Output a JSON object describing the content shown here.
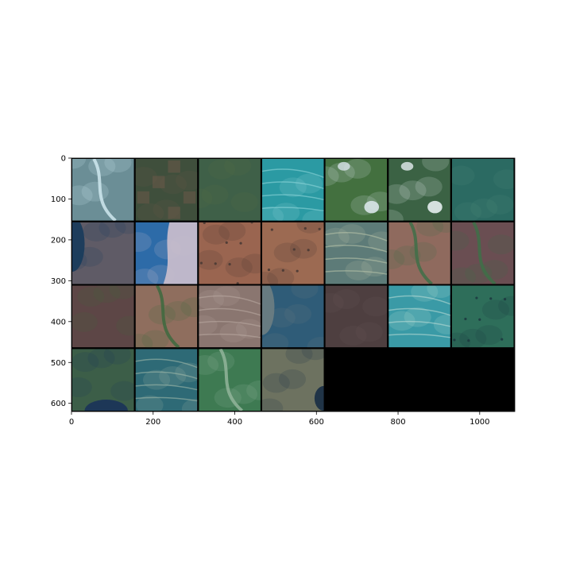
{
  "figure": {
    "background": "#ffffff",
    "empty_fill": "#000000",
    "grid": {
      "rows": 4,
      "cols": 7,
      "tile_count": 25
    },
    "x_axis": {
      "min": 0,
      "max": 1086,
      "ticks": [
        "0",
        "200",
        "400",
        "600",
        "800",
        "1000"
      ],
      "tick_values": [
        0,
        200,
        400,
        600,
        800,
        1000
      ]
    },
    "y_axis": {
      "min": 0,
      "max": 620,
      "ticks": [
        "0",
        "100",
        "200",
        "300",
        "400",
        "500",
        "600"
      ],
      "tick_values": [
        0,
        100,
        200,
        300,
        400,
        500,
        600
      ]
    },
    "tiles": [
      {
        "name": "tile-1",
        "base": "#6b8e96",
        "accent": "#cfe8ee",
        "feature": "river"
      },
      {
        "name": "tile-2",
        "base": "#3f4f3c",
        "accent": "#6b5a48",
        "feature": "fields"
      },
      {
        "name": "tile-3",
        "base": "#3f6048",
        "accent": "#566f45",
        "feature": "plain"
      },
      {
        "name": "tile-4",
        "base": "#2b9aa3",
        "accent": "#8ed5d8",
        "feature": "veins"
      },
      {
        "name": "tile-5",
        "base": "#43703f",
        "accent": "#d8e4e8",
        "feature": "clouds"
      },
      {
        "name": "tile-6",
        "base": "#3b6244",
        "accent": "#e5eef0",
        "feature": "clouds"
      },
      {
        "name": "tile-7",
        "base": "#2b6a62",
        "accent": "#4f8a7a",
        "feature": "plain"
      },
      {
        "name": "tile-8",
        "base": "#5f5b66",
        "accent": "#1a3c5c",
        "feature": "lake-left"
      },
      {
        "name": "tile-9",
        "base": "#2d6ba8",
        "accent": "#c6bccb",
        "feature": "coast"
      },
      {
        "name": "tile-10",
        "base": "#9a6550",
        "accent": "#4a3a34",
        "feature": "dots"
      },
      {
        "name": "tile-11",
        "base": "#9c6a52",
        "accent": "#4a3a34",
        "feature": "dots"
      },
      {
        "name": "tile-12",
        "base": "#5d7b78",
        "accent": "#b7c3a8",
        "feature": "veins"
      },
      {
        "name": "tile-13",
        "base": "#8f6a5e",
        "accent": "#3f6e48",
        "feature": "river"
      },
      {
        "name": "tile-14",
        "base": "#6a4e52",
        "accent": "#3e7048",
        "feature": "river"
      },
      {
        "name": "tile-15",
        "base": "#5d4646",
        "accent": "#42643c",
        "feature": "plain"
      },
      {
        "name": "tile-16",
        "base": "#8f6e5e",
        "accent": "#3d6a3e",
        "feature": "river"
      },
      {
        "name": "tile-17",
        "base": "#8a7670",
        "accent": "#b9a9a0",
        "feature": "veins"
      },
      {
        "name": "tile-18",
        "base": "#2f5c78",
        "accent": "#6a7c82",
        "feature": "lake-left"
      },
      {
        "name": "tile-19",
        "base": "#4e3f40",
        "accent": "#6b5a58",
        "feature": "plain"
      },
      {
        "name": "tile-20",
        "base": "#3a9aa6",
        "accent": "#b8dbd4",
        "feature": "veins"
      },
      {
        "name": "tile-21",
        "base": "#2e6e5a",
        "accent": "#1d3a40",
        "feature": "dots"
      },
      {
        "name": "tile-22",
        "base": "#3c5e48",
        "accent": "#1b3558",
        "feature": "lake-bottom"
      },
      {
        "name": "tile-23",
        "base": "#2e6a76",
        "accent": "#9fb8a8",
        "feature": "veins"
      },
      {
        "name": "tile-24",
        "base": "#3e7a52",
        "accent": "#92b49a",
        "feature": "river"
      },
      {
        "name": "tile-25",
        "base": "#6d7260",
        "accent": "#1c3046",
        "feature": "lake-right"
      }
    ]
  }
}
